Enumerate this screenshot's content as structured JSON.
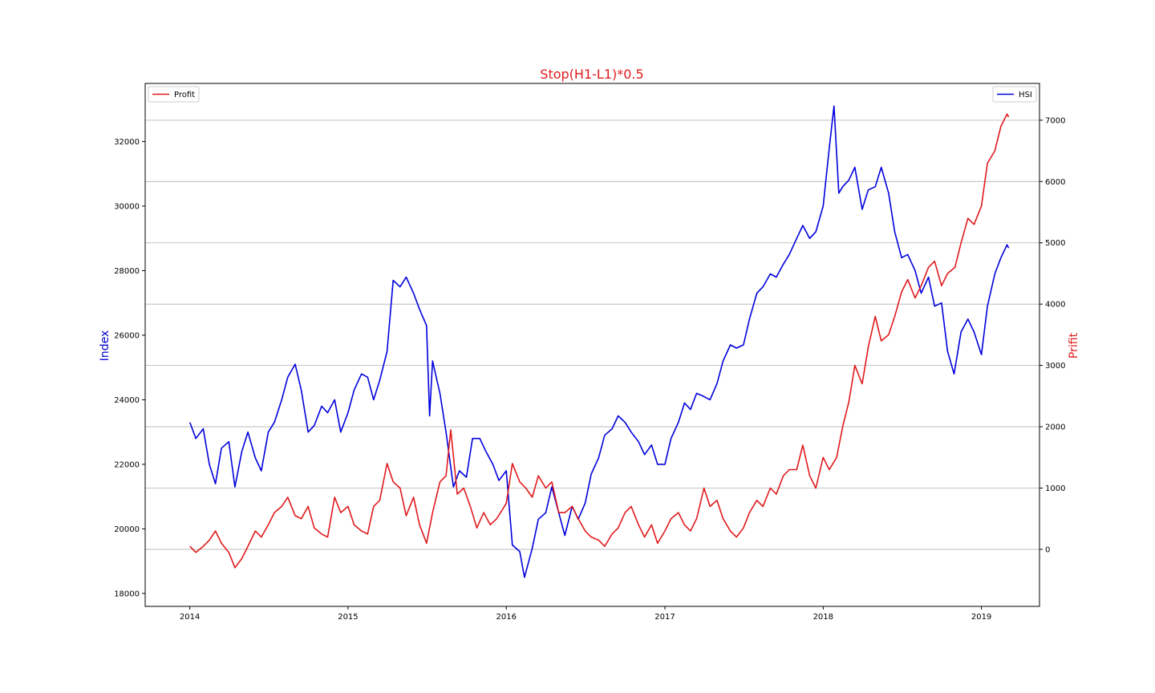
{
  "chart_data": {
    "type": "line",
    "title": "Stop(H1-L1)*0.5",
    "title_color": "#e0191c",
    "grid": "horizontal lines at right-axis ticks",
    "x_axis": {
      "type": "date",
      "range": [
        "2013-09-20",
        "2019-05-15"
      ],
      "ticks": [
        "2014",
        "2015",
        "2016",
        "2017",
        "2018",
        "2019"
      ]
    },
    "y_left": {
      "label": "Index",
      "label_color": "#0000cc",
      "range": [
        17600,
        33800
      ],
      "ticks": [
        18000,
        20000,
        22000,
        24000,
        26000,
        28000,
        30000,
        32000
      ]
    },
    "y_right": {
      "label": "Prifit",
      "label_color": "#e0191c",
      "range": [
        -930,
        7600
      ],
      "ticks": [
        0,
        1000,
        2000,
        3000,
        4000,
        5000,
        6000,
        7000
      ]
    },
    "series": [
      {
        "name": "HSI",
        "axis": "left",
        "color": "#0000dd",
        "legend_position": "upper right",
        "points": [
          [
            "2014-01-01",
            23300
          ],
          [
            "2014-01-15",
            22800
          ],
          [
            "2014-02-01",
            23100
          ],
          [
            "2014-02-15",
            22000
          ],
          [
            "2014-03-01",
            21400
          ],
          [
            "2014-03-15",
            22500
          ],
          [
            "2014-04-01",
            22700
          ],
          [
            "2014-04-15",
            21300
          ],
          [
            "2014-05-01",
            22400
          ],
          [
            "2014-05-15",
            23000
          ],
          [
            "2014-06-01",
            22200
          ],
          [
            "2014-06-15",
            21800
          ],
          [
            "2014-07-01",
            23000
          ],
          [
            "2014-07-15",
            23300
          ],
          [
            "2014-08-01",
            24000
          ],
          [
            "2014-08-15",
            24700
          ],
          [
            "2014-09-01",
            25100
          ],
          [
            "2014-09-15",
            24300
          ],
          [
            "2014-10-01",
            23000
          ],
          [
            "2014-10-15",
            23200
          ],
          [
            "2014-11-01",
            23800
          ],
          [
            "2014-11-15",
            23600
          ],
          [
            "2014-12-01",
            24000
          ],
          [
            "2014-12-15",
            23000
          ],
          [
            "2015-01-01",
            23600
          ],
          [
            "2015-01-15",
            24300
          ],
          [
            "2015-02-01",
            24800
          ],
          [
            "2015-02-15",
            24700
          ],
          [
            "2015-03-01",
            24000
          ],
          [
            "2015-03-15",
            24600
          ],
          [
            "2015-04-01",
            25500
          ],
          [
            "2015-04-15",
            27700
          ],
          [
            "2015-05-01",
            27500
          ],
          [
            "2015-05-15",
            27800
          ],
          [
            "2015-06-01",
            27300
          ],
          [
            "2015-06-15",
            26800
          ],
          [
            "2015-07-01",
            26300
          ],
          [
            "2015-07-08",
            23500
          ],
          [
            "2015-07-15",
            25200
          ],
          [
            "2015-08-01",
            24200
          ],
          [
            "2015-08-15",
            23000
          ],
          [
            "2015-09-01",
            21300
          ],
          [
            "2015-09-15",
            21800
          ],
          [
            "2015-10-01",
            21600
          ],
          [
            "2015-10-15",
            22800
          ],
          [
            "2015-11-01",
            22800
          ],
          [
            "2015-11-15",
            22400
          ],
          [
            "2015-12-01",
            22000
          ],
          [
            "2015-12-15",
            21500
          ],
          [
            "2016-01-01",
            21800
          ],
          [
            "2016-01-15",
            19500
          ],
          [
            "2016-02-01",
            19300
          ],
          [
            "2016-02-12",
            18500
          ],
          [
            "2016-03-01",
            19400
          ],
          [
            "2016-03-15",
            20300
          ],
          [
            "2016-04-01",
            20500
          ],
          [
            "2016-04-15",
            21300
          ],
          [
            "2016-05-01",
            20500
          ],
          [
            "2016-05-15",
            19800
          ],
          [
            "2016-06-01",
            20700
          ],
          [
            "2016-06-15",
            20300
          ],
          [
            "2016-07-01",
            20800
          ],
          [
            "2016-07-15",
            21700
          ],
          [
            "2016-08-01",
            22200
          ],
          [
            "2016-08-15",
            22900
          ],
          [
            "2016-09-01",
            23100
          ],
          [
            "2016-09-15",
            23500
          ],
          [
            "2016-10-01",
            23300
          ],
          [
            "2016-10-15",
            23000
          ],
          [
            "2016-11-01",
            22700
          ],
          [
            "2016-11-15",
            22300
          ],
          [
            "2016-12-01",
            22600
          ],
          [
            "2016-12-15",
            22000
          ],
          [
            "2017-01-01",
            22000
          ],
          [
            "2017-01-15",
            22800
          ],
          [
            "2017-02-01",
            23300
          ],
          [
            "2017-02-15",
            23900
          ],
          [
            "2017-03-01",
            23700
          ],
          [
            "2017-03-15",
            24200
          ],
          [
            "2017-04-01",
            24100
          ],
          [
            "2017-04-15",
            24000
          ],
          [
            "2017-05-01",
            24500
          ],
          [
            "2017-05-15",
            25200
          ],
          [
            "2017-06-01",
            25700
          ],
          [
            "2017-06-15",
            25600
          ],
          [
            "2017-07-01",
            25700
          ],
          [
            "2017-07-15",
            26500
          ],
          [
            "2017-08-01",
            27300
          ],
          [
            "2017-08-15",
            27500
          ],
          [
            "2017-09-01",
            27900
          ],
          [
            "2017-09-15",
            27800
          ],
          [
            "2017-10-01",
            28200
          ],
          [
            "2017-10-15",
            28500
          ],
          [
            "2017-11-01",
            29000
          ],
          [
            "2017-11-15",
            29400
          ],
          [
            "2017-12-01",
            29000
          ],
          [
            "2017-12-15",
            29200
          ],
          [
            "2018-01-01",
            30000
          ],
          [
            "2018-01-15",
            31800
          ],
          [
            "2018-01-26",
            33100
          ],
          [
            "2018-02-06",
            30400
          ],
          [
            "2018-02-15",
            30600
          ],
          [
            "2018-03-01",
            30800
          ],
          [
            "2018-03-15",
            31200
          ],
          [
            "2018-04-01",
            29900
          ],
          [
            "2018-04-15",
            30500
          ],
          [
            "2018-05-01",
            30600
          ],
          [
            "2018-05-15",
            31200
          ],
          [
            "2018-06-01",
            30400
          ],
          [
            "2018-06-15",
            29200
          ],
          [
            "2018-07-01",
            28400
          ],
          [
            "2018-07-15",
            28500
          ],
          [
            "2018-08-01",
            28000
          ],
          [
            "2018-08-15",
            27300
          ],
          [
            "2018-09-01",
            27800
          ],
          [
            "2018-09-15",
            26900
          ],
          [
            "2018-10-01",
            27000
          ],
          [
            "2018-10-15",
            25500
          ],
          [
            "2018-10-30",
            24800
          ],
          [
            "2018-11-15",
            26100
          ],
          [
            "2018-12-01",
            26500
          ],
          [
            "2018-12-15",
            26100
          ],
          [
            "2019-01-01",
            25400
          ],
          [
            "2019-01-15",
            26900
          ],
          [
            "2019-02-01",
            27900
          ],
          [
            "2019-02-15",
            28400
          ],
          [
            "2019-03-01",
            28800
          ],
          [
            "2019-03-05",
            28700
          ]
        ]
      },
      {
        "name": "Profit",
        "axis": "right",
        "color": "#e0191c",
        "legend_position": "upper left",
        "points": [
          [
            "2014-01-01",
            50
          ],
          [
            "2014-01-15",
            -50
          ],
          [
            "2014-02-01",
            50
          ],
          [
            "2014-02-15",
            150
          ],
          [
            "2014-03-01",
            300
          ],
          [
            "2014-03-15",
            100
          ],
          [
            "2014-04-01",
            -50
          ],
          [
            "2014-04-15",
            -300
          ],
          [
            "2014-05-01",
            -150
          ],
          [
            "2014-05-15",
            50
          ],
          [
            "2014-06-01",
            300
          ],
          [
            "2014-06-15",
            200
          ],
          [
            "2014-07-01",
            400
          ],
          [
            "2014-07-15",
            600
          ],
          [
            "2014-08-01",
            700
          ],
          [
            "2014-08-15",
            850
          ],
          [
            "2014-09-01",
            550
          ],
          [
            "2014-09-15",
            500
          ],
          [
            "2014-10-01",
            700
          ],
          [
            "2014-10-15",
            350
          ],
          [
            "2014-11-01",
            250
          ],
          [
            "2014-11-15",
            200
          ],
          [
            "2014-12-01",
            850
          ],
          [
            "2014-12-15",
            600
          ],
          [
            "2015-01-01",
            700
          ],
          [
            "2015-01-15",
            400
          ],
          [
            "2015-02-01",
            300
          ],
          [
            "2015-02-15",
            250
          ],
          [
            "2015-03-01",
            700
          ],
          [
            "2015-03-15",
            800
          ],
          [
            "2015-04-01",
            1400
          ],
          [
            "2015-04-15",
            1100
          ],
          [
            "2015-05-01",
            1000
          ],
          [
            "2015-05-15",
            550
          ],
          [
            "2015-06-01",
            850
          ],
          [
            "2015-06-15",
            400
          ],
          [
            "2015-07-01",
            100
          ],
          [
            "2015-07-15",
            600
          ],
          [
            "2015-08-01",
            1100
          ],
          [
            "2015-08-15",
            1200
          ],
          [
            "2015-08-26",
            1950
          ],
          [
            "2015-09-10",
            900
          ],
          [
            "2015-09-25",
            1000
          ],
          [
            "2015-10-10",
            700
          ],
          [
            "2015-10-25",
            350
          ],
          [
            "2015-11-10",
            600
          ],
          [
            "2015-11-25",
            400
          ],
          [
            "2015-12-10",
            500
          ],
          [
            "2016-01-01",
            750
          ],
          [
            "2016-01-15",
            1400
          ],
          [
            "2016-02-01",
            1100
          ],
          [
            "2016-02-15",
            1000
          ],
          [
            "2016-03-01",
            850
          ],
          [
            "2016-03-15",
            1200
          ],
          [
            "2016-04-01",
            1000
          ],
          [
            "2016-04-15",
            1100
          ],
          [
            "2016-05-01",
            600
          ],
          [
            "2016-05-15",
            600
          ],
          [
            "2016-06-01",
            700
          ],
          [
            "2016-06-15",
            500
          ],
          [
            "2016-07-01",
            300
          ],
          [
            "2016-07-15",
            200
          ],
          [
            "2016-08-01",
            150
          ],
          [
            "2016-08-15",
            50
          ],
          [
            "2016-09-01",
            250
          ],
          [
            "2016-09-15",
            350
          ],
          [
            "2016-10-01",
            600
          ],
          [
            "2016-10-15",
            700
          ],
          [
            "2016-11-01",
            400
          ],
          [
            "2016-11-15",
            200
          ],
          [
            "2016-12-01",
            400
          ],
          [
            "2016-12-15",
            100
          ],
          [
            "2017-01-01",
            300
          ],
          [
            "2017-01-15",
            500
          ],
          [
            "2017-02-01",
            600
          ],
          [
            "2017-02-15",
            400
          ],
          [
            "2017-03-01",
            300
          ],
          [
            "2017-03-15",
            500
          ],
          [
            "2017-04-01",
            1000
          ],
          [
            "2017-04-15",
            700
          ],
          [
            "2017-05-01",
            800
          ],
          [
            "2017-05-15",
            500
          ],
          [
            "2017-06-01",
            300
          ],
          [
            "2017-06-15",
            200
          ],
          [
            "2017-07-01",
            350
          ],
          [
            "2017-07-15",
            600
          ],
          [
            "2017-08-01",
            800
          ],
          [
            "2017-08-15",
            700
          ],
          [
            "2017-09-01",
            1000
          ],
          [
            "2017-09-15",
            900
          ],
          [
            "2017-10-01",
            1200
          ],
          [
            "2017-10-15",
            1300
          ],
          [
            "2017-11-01",
            1300
          ],
          [
            "2017-11-15",
            1700
          ],
          [
            "2017-12-01",
            1200
          ],
          [
            "2017-12-15",
            1000
          ],
          [
            "2018-01-01",
            1500
          ],
          [
            "2018-01-15",
            1300
          ],
          [
            "2018-02-01",
            1500
          ],
          [
            "2018-02-15",
            2000
          ],
          [
            "2018-03-01",
            2400
          ],
          [
            "2018-03-15",
            3000
          ],
          [
            "2018-04-01",
            2700
          ],
          [
            "2018-04-15",
            3300
          ],
          [
            "2018-05-01",
            3800
          ],
          [
            "2018-05-15",
            3400
          ],
          [
            "2018-06-01",
            3500
          ],
          [
            "2018-06-15",
            3800
          ],
          [
            "2018-07-01",
            4200
          ],
          [
            "2018-07-15",
            4400
          ],
          [
            "2018-08-01",
            4100
          ],
          [
            "2018-08-15",
            4300
          ],
          [
            "2018-09-01",
            4600
          ],
          [
            "2018-09-15",
            4700
          ],
          [
            "2018-10-01",
            4300
          ],
          [
            "2018-10-15",
            4500
          ],
          [
            "2018-11-01",
            4600
          ],
          [
            "2018-11-15",
            5000
          ],
          [
            "2018-12-01",
            5400
          ],
          [
            "2018-12-15",
            5300
          ],
          [
            "2019-01-01",
            5600
          ],
          [
            "2019-01-15",
            6300
          ],
          [
            "2019-02-01",
            6500
          ],
          [
            "2019-02-15",
            6900
          ],
          [
            "2019-03-01",
            7100
          ],
          [
            "2019-03-05",
            7050
          ]
        ]
      }
    ]
  }
}
